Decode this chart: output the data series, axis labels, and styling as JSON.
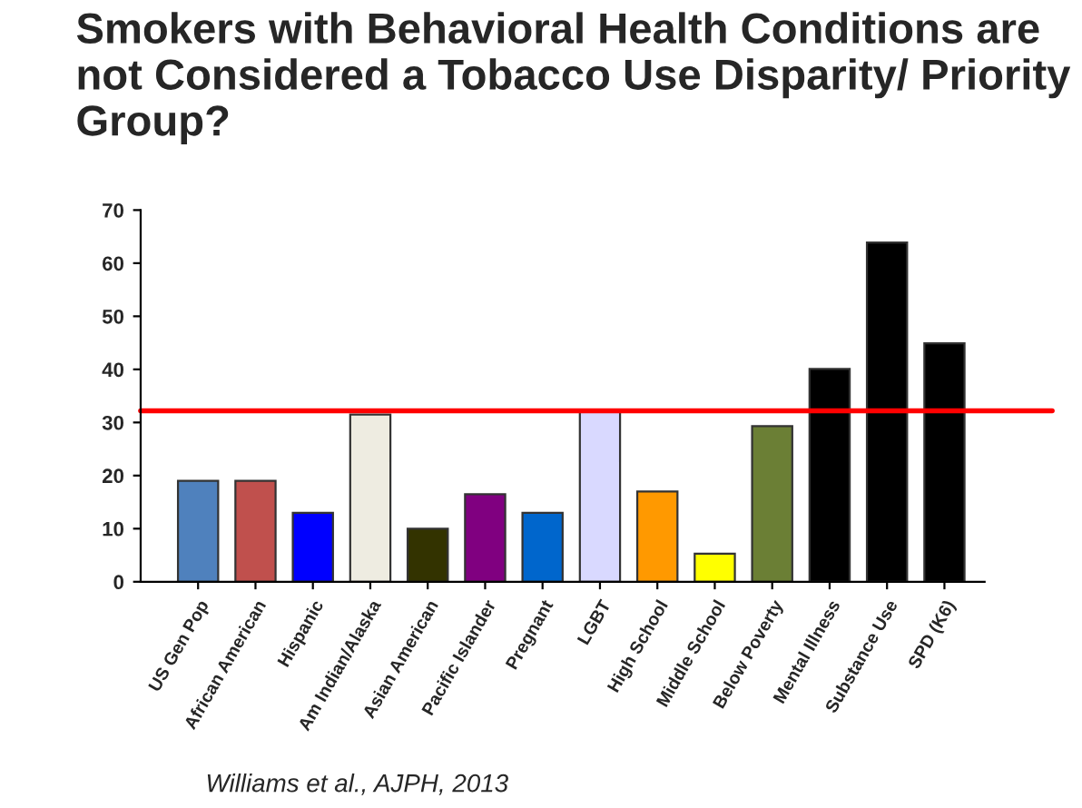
{
  "chart_data": {
    "type": "bar",
    "title": "Smokers with Behavioral Health Conditions are not Considered a Tobacco Use Disparity/ Priority Group?",
    "categories": [
      "US Gen Pop",
      "African American",
      "Hispanic",
      "Am Indian/Alaska",
      "Asian American",
      "Pacific Islander",
      "Pregnant",
      "LGBT",
      "High School",
      "Middle School",
      "Below Poverty",
      "Mental Illness",
      "Substance Use",
      "SPD (K6)"
    ],
    "values": [
      19,
      19,
      13,
      31.5,
      10,
      16.5,
      13,
      32,
      17,
      5.3,
      29.3,
      40.1,
      63.9,
      44.9
    ],
    "colors": [
      "#4f81bd",
      "#c0504d",
      "#0000ff",
      "#eeece1",
      "#333300",
      "#800080",
      "#0066cc",
      "#d9d9ff",
      "#ff9900",
      "#ffff00",
      "#6b7f35",
      "#000000",
      "#000000",
      "#000000"
    ],
    "ylim": [
      0,
      70
    ],
    "yticks": [
      0,
      10,
      20,
      30,
      40,
      50,
      60,
      70
    ],
    "ref_lines": [
      {
        "axis": "y",
        "value": 32.2,
        "color": "#ff0000"
      }
    ],
    "annotations": [
      "Williams et al., AJPH, 2013"
    ],
    "grid": false,
    "legend": false
  }
}
